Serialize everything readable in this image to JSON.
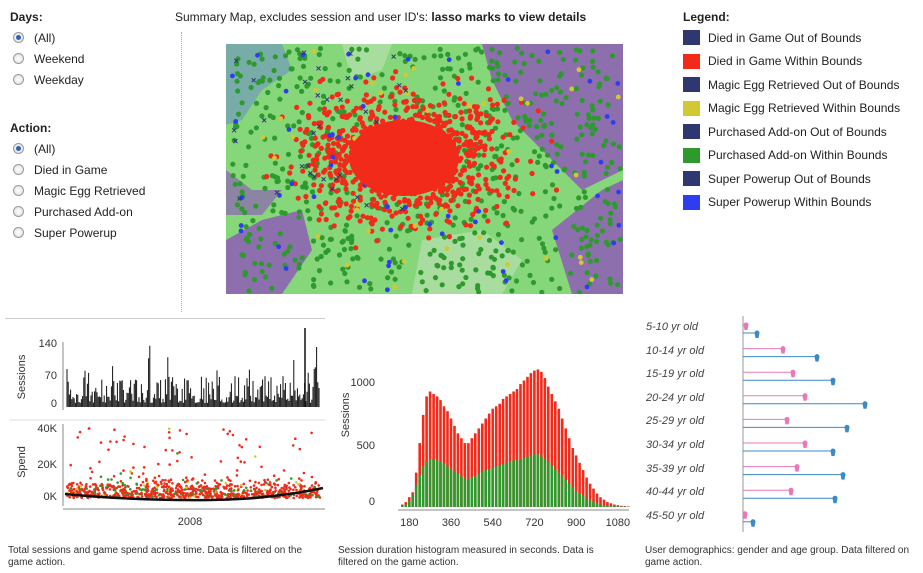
{
  "days": {
    "title": "Days:",
    "options": [
      {
        "label": "(All)",
        "selected": true
      },
      {
        "label": "Weekend",
        "selected": false
      },
      {
        "label": "Weekday",
        "selected": false
      }
    ]
  },
  "action": {
    "title": "Action:",
    "options": [
      {
        "label": "(All)",
        "selected": true
      },
      {
        "label": "Died in Game",
        "selected": false
      },
      {
        "label": "Magic Egg Retrieved",
        "selected": false
      },
      {
        "label": "Purchased Add-on",
        "selected": false
      },
      {
        "label": "Super Powerup",
        "selected": false
      }
    ]
  },
  "map": {
    "title_prefix": "Summary Map, excludes session and user ID's: ",
    "title_bold": "lasso marks to view details"
  },
  "legend": {
    "title": "Legend:",
    "items": [
      {
        "label": "Died in Game Out of Bounds",
        "color": "#2e3770"
      },
      {
        "label": "Died in Game Within Bounds",
        "color": "#f22a1a"
      },
      {
        "label": "Magic Egg Retrieved Out of Bounds",
        "color": "#2e3770"
      },
      {
        "label": "Magic Egg Retrieved Within Bounds",
        "color": "#d2c832"
      },
      {
        "label": "Purchased Add-on Out of Bounds",
        "color": "#2e3770"
      },
      {
        "label": "Purchased Add-on Within Bounds",
        "color": "#2e9a2e"
      },
      {
        "label": "Super Powerup Out of Bounds",
        "color": "#2e3770"
      },
      {
        "label": "Super Powerup Within Bounds",
        "color": "#2f3df0"
      }
    ]
  },
  "timeline": {
    "sessions_label": "Sessions",
    "sessions_ticks": [
      "140",
      "70",
      "0"
    ],
    "spend_label": "Spend",
    "spend_ticks": [
      "40K",
      "20K",
      "0K"
    ],
    "x_tick": "2008",
    "caption": "Total sessions and game spend across time. Data is filtered on the game action."
  },
  "histogram": {
    "ylabel": "Sessions",
    "y_ticks": [
      "1000",
      "500",
      "0"
    ],
    "x_ticks": [
      "180",
      "360",
      "540",
      "720",
      "900",
      "1080"
    ],
    "caption": "Session duration histogram measured in seconds. Data is filtered on the game action."
  },
  "demographics": {
    "groups": [
      "5-10 yr old",
      "10-14 yr old",
      "15-19 yr old",
      "20-24 yr old",
      "25-29 yr old",
      "30-34 yr old",
      "35-39 yr old",
      "40-44 yr old",
      "45-50 yr old"
    ],
    "female_color": "#e878b8",
    "male_color": "#3a8ac8",
    "caption": "User demographics: gender and age group. Data filtered on game action."
  },
  "chart_data": [
    {
      "type": "bar",
      "title": "",
      "xlabel": "",
      "ylabel": "Sessions",
      "x_range": [
        0,
        1140
      ],
      "ylim": [
        0,
        1400
      ],
      "categories": [
        150,
        165,
        180,
        195,
        210,
        225,
        240,
        255,
        270,
        285,
        300,
        315,
        330,
        345,
        360,
        375,
        390,
        405,
        420,
        435,
        450,
        465,
        480,
        495,
        510,
        525,
        540,
        555,
        570,
        585,
        600,
        615,
        630,
        645,
        660,
        675,
        690,
        705,
        720,
        735,
        750,
        765,
        780,
        795,
        810,
        825,
        840,
        855,
        870,
        885,
        900,
        915,
        930,
        945,
        960,
        975,
        990,
        1005,
        1020,
        1035,
        1050,
        1065,
        1080,
        1095,
        1110,
        1125
      ],
      "series": [
        {
          "name": "Died in Game",
          "color": "#f22a1a",
          "values": [
            20,
            40,
            80,
            120,
            280,
            520,
            750,
            900,
            940,
            920,
            900,
            870,
            820,
            780,
            720,
            660,
            600,
            560,
            520,
            520,
            560,
            600,
            640,
            680,
            720,
            760,
            800,
            820,
            840,
            880,
            900,
            920,
            940,
            960,
            1000,
            1030,
            1060,
            1090,
            1110,
            1120,
            1100,
            1050,
            980,
            920,
            860,
            800,
            720,
            640,
            560,
            480,
            420,
            360,
            300,
            240,
            190,
            150,
            110,
            80,
            60,
            40,
            30,
            20,
            15,
            10,
            8,
            5
          ]
        },
        {
          "name": "Purchased Add-on",
          "color": "#2e9a2e",
          "values": [
            10,
            20,
            50,
            100,
            180,
            260,
            330,
            370,
            390,
            390,
            380,
            370,
            350,
            330,
            310,
            290,
            270,
            250,
            230,
            230,
            240,
            250,
            270,
            290,
            300,
            310,
            320,
            330,
            340,
            350,
            360,
            370,
            380,
            380,
            390,
            400,
            410,
            420,
            430,
            430,
            410,
            390,
            370,
            340,
            310,
            280,
            250,
            220,
            190,
            160,
            130,
            110,
            90,
            70,
            55,
            40,
            30,
            22,
            16,
            12,
            9,
            7,
            5,
            4,
            3,
            2
          ]
        }
      ]
    },
    {
      "type": "line",
      "title": "",
      "ylabel": "Sessions",
      "ylim": [
        0,
        160
      ],
      "xlabel": "2008"
    },
    {
      "type": "scatter",
      "title": "",
      "ylabel": "Spend",
      "ylim": [
        0,
        40000
      ],
      "xlabel": "2008"
    }
  ]
}
